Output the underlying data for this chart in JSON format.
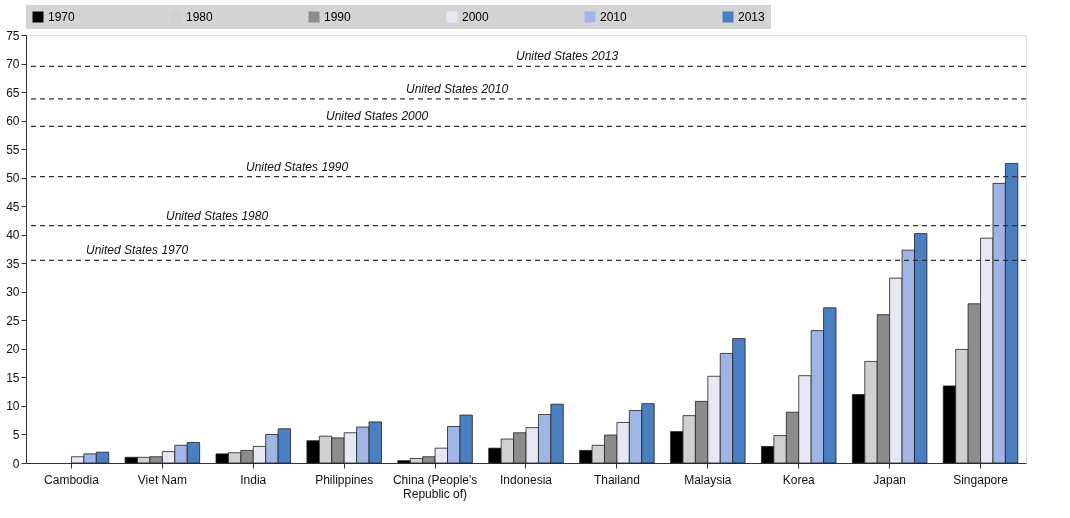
{
  "chart_data": {
    "type": "bar",
    "categories": [
      "Cambodia",
      "Viet Nam",
      "India",
      "Philippines",
      "China (People's Republic of)",
      "Indonesia",
      "Thailand",
      "Malaysia",
      "Korea",
      "Japan",
      "Singapore"
    ],
    "series": [
      {
        "name": "1970",
        "color": "#000000",
        "values": [
          null,
          1.0,
          1.6,
          3.9,
          0.4,
          2.6,
          2.2,
          5.5,
          2.9,
          12.0,
          13.5
        ]
      },
      {
        "name": "1980",
        "color": "#d0d0d0",
        "values": [
          null,
          1.0,
          1.8,
          4.7,
          0.8,
          4.2,
          3.1,
          8.3,
          4.8,
          17.8,
          19.9
        ]
      },
      {
        "name": "1990",
        "color": "#8c8c8c",
        "values": [
          null,
          1.1,
          2.2,
          4.4,
          1.1,
          5.3,
          4.9,
          10.8,
          8.9,
          26.0,
          27.9
        ]
      },
      {
        "name": "2000",
        "color": "#e6e9f4",
        "values": [
          1.1,
          2.0,
          2.9,
          5.3,
          2.6,
          6.2,
          7.1,
          15.2,
          15.3,
          32.4,
          39.4
        ]
      },
      {
        "name": "2010",
        "color": "#a0b4e6",
        "values": [
          1.6,
          3.1,
          5.0,
          6.3,
          6.4,
          8.5,
          9.2,
          19.2,
          23.2,
          37.3,
          49.0
        ]
      },
      {
        "name": "2013",
        "color": "#4a7fc1",
        "values": [
          1.9,
          3.6,
          6.0,
          7.2,
          8.4,
          10.3,
          10.4,
          21.8,
          27.2,
          40.2,
          52.5
        ]
      }
    ],
    "ylim": [
      0,
      75
    ],
    "yticks": [
      0,
      5,
      10,
      15,
      20,
      25,
      30,
      35,
      40,
      45,
      50,
      55,
      60,
      65,
      70,
      75
    ],
    "ref_lines": [
      {
        "axis": "y",
        "value": 35.5,
        "label": "United States 1970",
        "line_style": "dashed",
        "color": "#333333"
      },
      {
        "axis": "y",
        "value": 41.6,
        "label": "United States 1980",
        "line_style": "dashed",
        "color": "#333333"
      },
      {
        "axis": "y",
        "value": 50.2,
        "label": "United States 1990",
        "line_style": "dashed",
        "color": "#333333"
      },
      {
        "axis": "y",
        "value": 59.0,
        "label": "United States 2000",
        "line_style": "dashed",
        "color": "#333333"
      },
      {
        "axis": "y",
        "value": 63.8,
        "label": "United States 2010",
        "line_style": "dashed",
        "color": "#333333"
      },
      {
        "axis": "y",
        "value": 69.5,
        "label": "United States 2013",
        "line_style": "dashed",
        "color": "#333333"
      }
    ],
    "grid": false,
    "legend": "top"
  }
}
